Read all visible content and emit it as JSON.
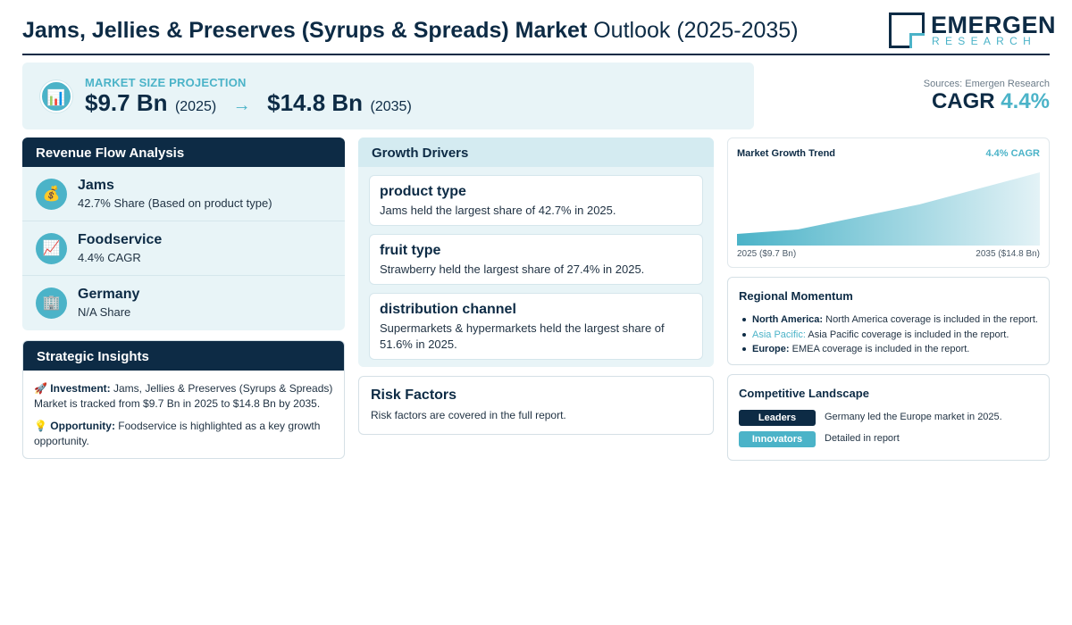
{
  "header": {
    "title_bold": "Jams, Jellies & Preserves (Syrups & Spreads) Market",
    "title_rest": " Outlook (2025-2035)",
    "logo_main": "EMERGEN",
    "logo_sub": "RESEARCH"
  },
  "projection": {
    "icon": "bar-chart-icon",
    "label": "MARKET SIZE PROJECTION",
    "start_value": "$9.7 Bn",
    "start_year": "(2025)",
    "arrow": "→",
    "end_value": "$14.8 Bn",
    "end_year": "(2035)"
  },
  "sources": "Sources: Emergen Research",
  "cagr": {
    "label": "CAGR",
    "value": "4.4%"
  },
  "revenue": {
    "title": "Revenue Flow Analysis",
    "items": [
      {
        "icon": "money-bag-icon",
        "glyph": "💰",
        "title": "Jams",
        "sub": "42.7% Share (Based on product type)"
      },
      {
        "icon": "trend-chart-icon",
        "glyph": "📈",
        "title": "Foodservice",
        "sub": "4.4% CAGR"
      },
      {
        "icon": "office-building-icon",
        "glyph": "🏢",
        "title": "Germany",
        "sub": "N/A Share"
      }
    ]
  },
  "insights": {
    "title": "Strategic Insights",
    "investment_glyph": "🚀",
    "investment_label": "Investment:",
    "investment_text": " Jams, Jellies & Preserves (Syrups & Spreads) Market is tracked from $9.7 Bn in 2025 to $14.8 Bn by 2035.",
    "opportunity_glyph": "💡",
    "opportunity_label": "Opportunity:",
    "opportunity_text": " Foodservice is highlighted as a key growth opportunity."
  },
  "drivers": {
    "title": "Growth Drivers",
    "items": [
      {
        "title": "product type",
        "text": "Jams held the largest share of 42.7% in 2025."
      },
      {
        "title": "fruit type",
        "text": "Strawberry held the largest share of 27.4% in 2025."
      },
      {
        "title": "distribution channel",
        "text": "Supermarkets & hypermarkets held the largest share of 51.6% in 2025."
      }
    ]
  },
  "risk": {
    "title": "Risk Factors",
    "text": "Risk factors are covered in the full report."
  },
  "trend": {
    "title": "Market Growth Trend",
    "cagr_label": "4.4% CAGR",
    "start_label": "2025 ($9.7 Bn)",
    "end_label": "2035 ($14.8 Bn)",
    "colors": {
      "fill_start": "#4bb3c8",
      "fill_end": "#e3f2f6"
    }
  },
  "regional": {
    "title": "Regional Momentum",
    "items": [
      {
        "region": "North America:",
        "text": " North America coverage is included in the report.",
        "highlight": false
      },
      {
        "region": "Asia Pacific:",
        "text": " Asia Pacific coverage is included in the report.",
        "highlight": true
      },
      {
        "region": "Europe:",
        "text": " EMEA coverage is included in the report.",
        "highlight": false
      }
    ]
  },
  "competitive": {
    "title": "Competitive Landscape",
    "rows": [
      {
        "badge": "Leaders",
        "text": "Germany led the Europe market in 2025.",
        "color": "#0d2b45"
      },
      {
        "badge": "Innovators",
        "text": "Detailed in report",
        "color": "#4bb3c8"
      }
    ]
  },
  "colors": {
    "navy": "#0d2b45",
    "teal": "#4bb3c8",
    "panel": "#e8f4f7"
  }
}
